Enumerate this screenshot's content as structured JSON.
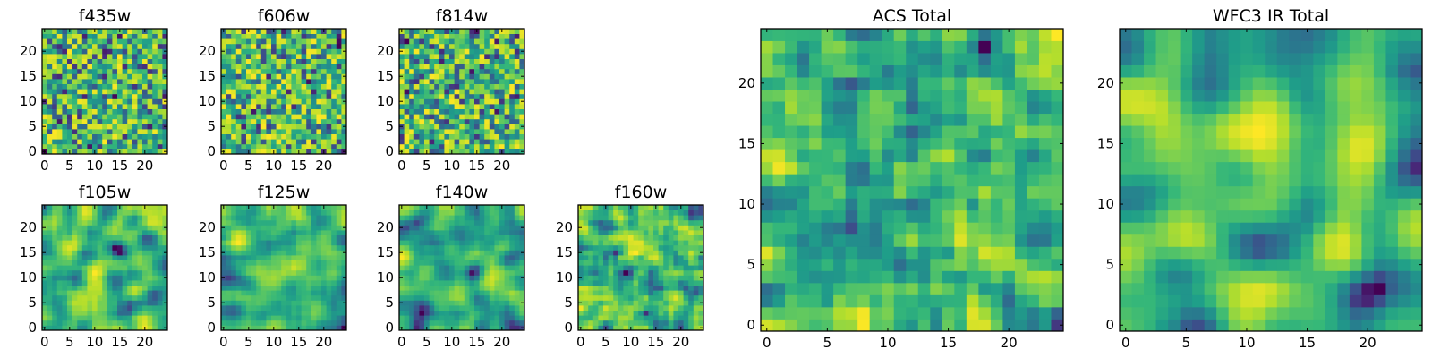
{
  "colormap": "viridis",
  "chart_data": [
    {
      "type": "heatmap",
      "title": "f435w",
      "seed": 11,
      "smooth": 0,
      "xlim": [
        0,
        24
      ],
      "ylim": [
        0,
        24
      ],
      "x_ticks": [
        0,
        5,
        10,
        15,
        20
      ],
      "y_ticks": [
        0,
        5,
        10,
        15,
        20
      ],
      "x_tick_labels": [
        "0",
        "5",
        "10",
        "15",
        "20"
      ],
      "y_tick_labels": [
        "0",
        "5",
        "10",
        "15",
        "20"
      ]
    },
    {
      "type": "heatmap",
      "title": "f606w",
      "seed": 23,
      "smooth": 0,
      "xlim": [
        0,
        24
      ],
      "ylim": [
        0,
        24
      ],
      "x_ticks": [
        0,
        5,
        10,
        15,
        20
      ],
      "y_ticks": [
        0,
        5,
        10,
        15,
        20
      ],
      "x_tick_labels": [
        "0",
        "5",
        "10",
        "15",
        "20"
      ],
      "y_tick_labels": [
        "0",
        "5",
        "10",
        "15",
        "20"
      ]
    },
    {
      "type": "heatmap",
      "title": "f814w",
      "seed": 37,
      "smooth": 0,
      "xlim": [
        0,
        24
      ],
      "ylim": [
        0,
        24
      ],
      "x_ticks": [
        0,
        5,
        10,
        15,
        20
      ],
      "y_ticks": [
        0,
        5,
        10,
        15,
        20
      ],
      "x_tick_labels": [
        "0",
        "5",
        "10",
        "15",
        "20"
      ],
      "y_tick_labels": [
        "0",
        "5",
        "10",
        "15",
        "20"
      ]
    },
    {
      "type": "heatmap",
      "title": "f105w",
      "seed": 41,
      "smooth": 2,
      "xlim": [
        0,
        24
      ],
      "ylim": [
        0,
        24
      ],
      "x_ticks": [
        0,
        5,
        10,
        15,
        20
      ],
      "y_ticks": [
        0,
        5,
        10,
        15,
        20
      ],
      "x_tick_labels": [
        "0",
        "5",
        "10",
        "15",
        "20"
      ],
      "y_tick_labels": [
        "0",
        "5",
        "10",
        "15",
        "20"
      ]
    },
    {
      "type": "heatmap",
      "title": "f125w",
      "seed": 53,
      "smooth": 2,
      "xlim": [
        0,
        24
      ],
      "ylim": [
        0,
        24
      ],
      "x_ticks": [
        0,
        5,
        10,
        15,
        20
      ],
      "y_ticks": [
        0,
        5,
        10,
        15,
        20
      ],
      "x_tick_labels": [
        "0",
        "5",
        "10",
        "15",
        "20"
      ],
      "y_tick_labels": [
        "0",
        "5",
        "10",
        "15",
        "20"
      ]
    },
    {
      "type": "heatmap",
      "title": "f140w",
      "seed": 67,
      "smooth": 2,
      "xlim": [
        0,
        24
      ],
      "ylim": [
        0,
        24
      ],
      "x_ticks": [
        0,
        5,
        10,
        15,
        20
      ],
      "y_ticks": [
        0,
        5,
        10,
        15,
        20
      ],
      "x_tick_labels": [
        "0",
        "5",
        "10",
        "15",
        "20"
      ],
      "y_tick_labels": [
        "0",
        "5",
        "10",
        "15",
        "20"
      ]
    },
    {
      "type": "heatmap",
      "title": "f160w",
      "seed": 79,
      "smooth": 1,
      "xlim": [
        0,
        24
      ],
      "ylim": [
        0,
        24
      ],
      "x_ticks": [
        0,
        5,
        10,
        15,
        20
      ],
      "y_ticks": [
        0,
        5,
        10,
        15,
        20
      ],
      "x_tick_labels": [
        "0",
        "5",
        "10",
        "15",
        "20"
      ],
      "y_tick_labels": [
        "0",
        "5",
        "10",
        "15",
        "20"
      ]
    },
    {
      "type": "heatmap",
      "title": "ACS Total",
      "seed": 83,
      "smooth": 1,
      "xlim": [
        0,
        24
      ],
      "ylim": [
        0,
        24
      ],
      "x_ticks": [
        0,
        5,
        10,
        15,
        20
      ],
      "y_ticks": [
        0,
        5,
        10,
        15,
        20
      ],
      "x_tick_labels": [
        "0",
        "5",
        "10",
        "15",
        "20"
      ],
      "y_tick_labels": [
        "0",
        "5",
        "10",
        "15",
        "20"
      ]
    },
    {
      "type": "heatmap",
      "title": "WFC3 IR Total",
      "seed": 97,
      "smooth": 3,
      "xlim": [
        0,
        24
      ],
      "ylim": [
        0,
        24
      ],
      "x_ticks": [
        0,
        5,
        10,
        15,
        20
      ],
      "y_ticks": [
        0,
        5,
        10,
        15,
        20
      ],
      "x_tick_labels": [
        "0",
        "5",
        "10",
        "15",
        "20"
      ],
      "y_tick_labels": [
        "0",
        "5",
        "10",
        "15",
        "20"
      ]
    }
  ]
}
